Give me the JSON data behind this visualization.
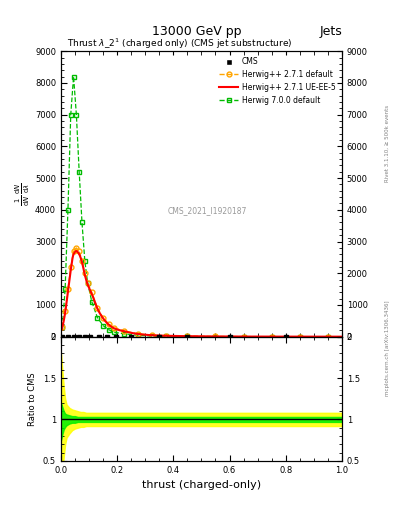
{
  "title_top": "13000 GeV pp",
  "title_right": "Jets",
  "plot_title": "Thrust $\\lambda\\_2^1$ (charged only) (CMS jet substructure)",
  "xlabel": "thrust (charged-only)",
  "ylabel_ratio": "Ratio to CMS",
  "watermark": "CMS_2021_I1920187",
  "rivet_text": "Rivet 3.1.10, ≥ 500k events",
  "mcplots_text": "mcplots.cern.ch [arXiv:1306.3436]",
  "legend_entries": [
    "CMS",
    "Herwig++ 2.7.1 default",
    "Herwig++ 2.7.1 UE-EE-5",
    "Herwig 7.0.0 default"
  ],
  "cms_color": "#000000",
  "hw271_default_color": "#FFA500",
  "hw271_ueee5_color": "#FF0000",
  "hw700_color": "#00BB00",
  "xlim": [
    0.0,
    1.0
  ],
  "ylim_main": [
    0,
    9000
  ],
  "ylim_ratio": [
    0.5,
    2.0
  ],
  "xm": [
    0.005,
    0.015,
    0.025,
    0.035,
    0.045,
    0.055,
    0.065,
    0.075,
    0.085,
    0.095,
    0.11,
    0.13,
    0.15,
    0.17,
    0.19,
    0.225,
    0.275,
    0.325,
    0.375,
    0.45,
    0.55,
    0.65,
    0.75,
    0.85,
    0.95
  ],
  "hw271_def_y": [
    300,
    800,
    1500,
    2200,
    2700,
    2800,
    2700,
    2400,
    2000,
    1700,
    1400,
    900,
    600,
    400,
    280,
    180,
    90,
    50,
    30,
    18,
    8,
    4,
    2,
    1,
    0.5
  ],
  "hw271_ue_y": [
    300,
    750,
    1450,
    2100,
    2600,
    2700,
    2600,
    2350,
    1950,
    1650,
    1350,
    880,
    580,
    380,
    260,
    170,
    85,
    45,
    28,
    16,
    7,
    3.5,
    1.8,
    0.9,
    0.4
  ],
  "hw700_y": [
    300,
    1500,
    4000,
    7000,
    8200,
    7000,
    5200,
    3600,
    2400,
    1700,
    1100,
    600,
    350,
    220,
    140,
    90,
    42,
    22,
    12,
    7,
    3,
    1.5,
    0.8,
    0.4,
    0.2
  ],
  "cms_x": [
    0.005,
    0.025,
    0.045,
    0.065,
    0.085,
    0.105,
    0.135,
    0.165,
    0.195,
    0.25,
    0.35,
    0.45,
    0.6,
    0.8
  ],
  "cms_y": [
    0,
    0,
    0,
    0,
    0,
    0,
    0,
    0,
    0,
    0,
    0,
    0,
    0,
    0
  ],
  "yellow_band_upper": 1.08,
  "yellow_band_lower": 0.92,
  "green_band_upper": 1.03,
  "green_band_lower": 0.97,
  "yellow_spike_x": [
    0.0,
    0.005,
    0.01,
    0.015,
    0.02,
    0.03,
    0.04,
    0.05,
    0.06,
    0.07,
    0.08,
    0.09,
    0.1
  ],
  "yellow_spike_upper": [
    1.8,
    1.6,
    1.4,
    1.25,
    1.18,
    1.14,
    1.12,
    1.11,
    1.1,
    1.09,
    1.09,
    1.08,
    1.08
  ],
  "yellow_spike_lower": [
    0.2,
    0.35,
    0.55,
    0.7,
    0.78,
    0.83,
    0.87,
    0.89,
    0.9,
    0.91,
    0.91,
    0.92,
    0.92
  ],
  "green_spike_x": [
    0.0,
    0.005,
    0.01,
    0.015,
    0.02,
    0.03,
    0.04,
    0.05,
    0.06,
    0.07,
    0.08,
    0.09,
    0.1
  ],
  "green_spike_upper": [
    1.2,
    1.15,
    1.1,
    1.07,
    1.06,
    1.05,
    1.04,
    1.04,
    1.03,
    1.03,
    1.03,
    1.03,
    1.03
  ],
  "green_spike_lower": [
    0.75,
    0.82,
    0.88,
    0.91,
    0.93,
    0.95,
    0.96,
    0.96,
    0.97,
    0.97,
    0.97,
    0.97,
    0.97
  ]
}
